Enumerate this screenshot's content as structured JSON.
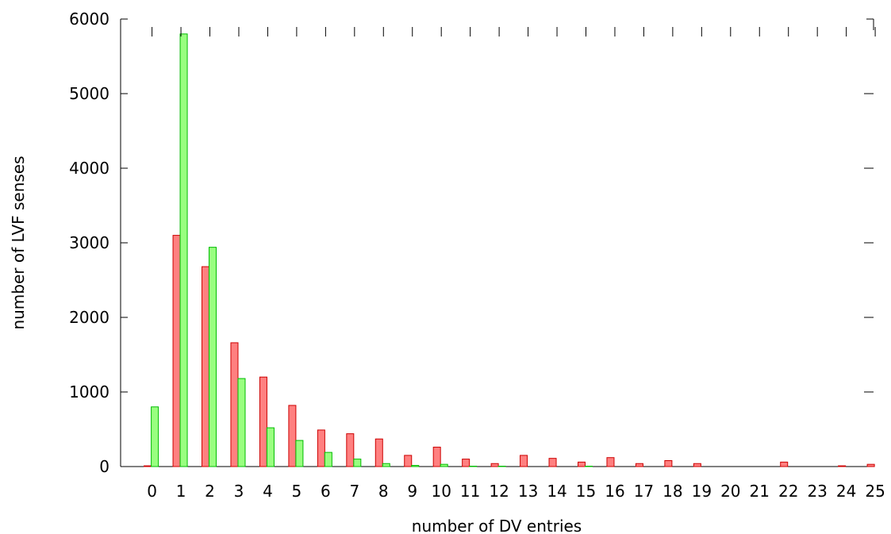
{
  "chart_data": {
    "type": "bar",
    "title": "",
    "xlabel": "number of DV entries",
    "ylabel": "number of LVF senses",
    "ylim": [
      0,
      6000
    ],
    "yticks": [
      0,
      1000,
      2000,
      3000,
      4000,
      5000,
      6000
    ],
    "grid": false,
    "legend": "none",
    "categories": [
      "0",
      "1",
      "2",
      "3",
      "4",
      "5",
      "6",
      "7",
      "8",
      "9",
      "10",
      "11",
      "12",
      "13",
      "14",
      "15",
      "16",
      "17",
      "18",
      "19",
      "20",
      "21",
      "22",
      "23",
      "24",
      "25"
    ],
    "series": [
      {
        "color": "#ff8080",
        "stroke": "#cc0000",
        "values": [
          10,
          3100,
          2680,
          1660,
          1200,
          820,
          490,
          440,
          370,
          150,
          260,
          100,
          40,
          150,
          110,
          60,
          120,
          40,
          80,
          40,
          0,
          0,
          60,
          0,
          10,
          30
        ]
      },
      {
        "color": "#99ff80",
        "stroke": "#00bb00",
        "values": [
          800,
          5800,
          2940,
          1180,
          520,
          350,
          190,
          100,
          40,
          15,
          30,
          5,
          5,
          0,
          0,
          5,
          0,
          0,
          0,
          0,
          0,
          0,
          0,
          0,
          0,
          0
        ]
      }
    ]
  }
}
